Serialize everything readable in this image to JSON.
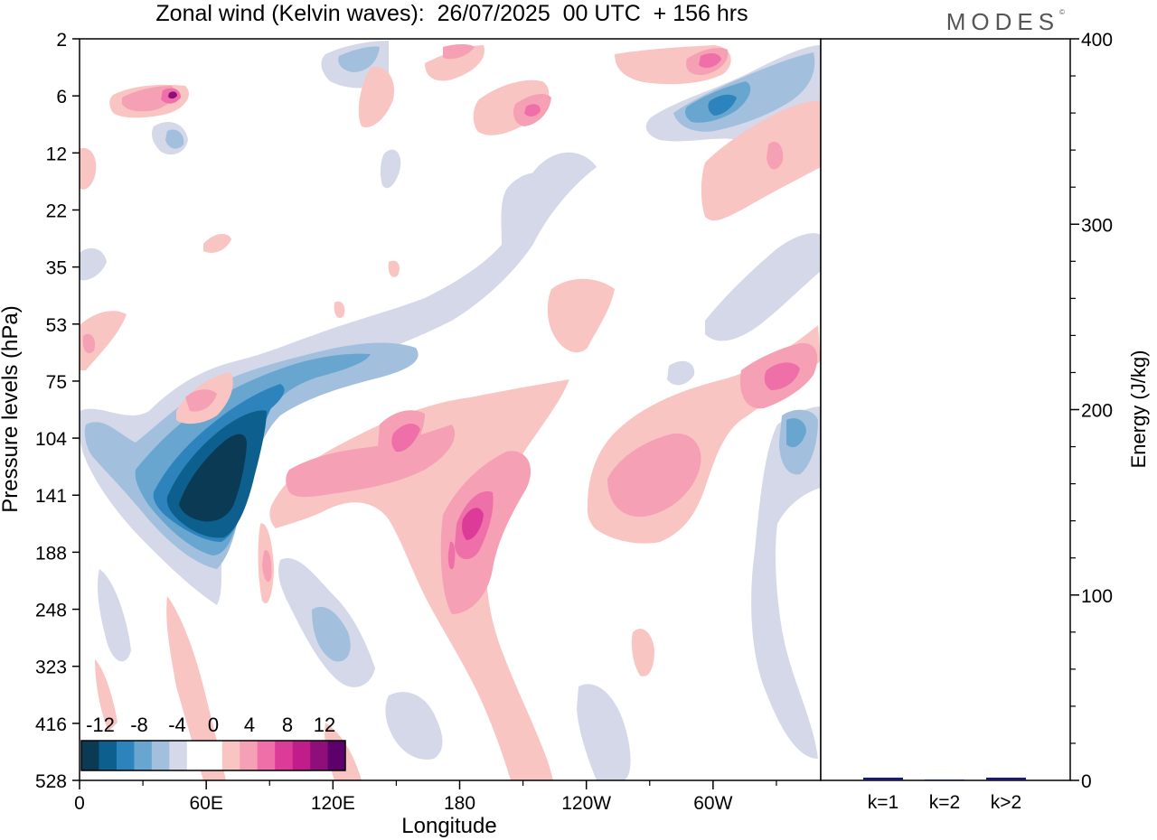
{
  "title": "Zonal wind (Kelvin waves):  26/07/2025  00 UTC  + 156 hrs",
  "logo": "MODES",
  "chart_data": [
    {
      "type": "heatmap",
      "title": "Zonal wind (Kelvin waves):  26/07/2025  00 UTC  + 156 hrs",
      "xlabel": "Longitude",
      "ylabel": "Pressure levels (hPa)",
      "x_ticks": [
        {
          "lon": 0,
          "label": "0"
        },
        {
          "lon": 60,
          "label": "60E"
        },
        {
          "lon": 120,
          "label": "120E"
        },
        {
          "lon": 180,
          "label": "180"
        },
        {
          "lon": 240,
          "label": "120W"
        },
        {
          "lon": 300,
          "label": "60W"
        }
      ],
      "xlim": [
        0,
        360
      ],
      "y_levels": [
        "2",
        "6",
        "12",
        "22",
        "35",
        "53",
        "75",
        "104",
        "141",
        "188",
        "248",
        "323",
        "416",
        "528"
      ],
      "colorbar": {
        "labels": [
          "-12",
          "-8",
          "-4",
          "0",
          "4",
          "8",
          "12"
        ],
        "colors": [
          "#0a3a54",
          "#0d5f8d",
          "#2d84bc",
          "#69a6cf",
          "#a2c0dd",
          "#d4d8e8",
          "#ffffff",
          "#ffffff",
          "#f8c5c3",
          "#f6a0b5",
          "#ef6fa8",
          "#dc3c98",
          "#c01d8a",
          "#8f0f7a",
          "#5d006b"
        ]
      },
      "features": [
        {
          "value": -4,
          "lon": 25,
          "level": 104,
          "note": "negative anomaly"
        },
        {
          "value": -16,
          "lon": 60,
          "level": 130,
          "note": "strongest negative anomaly"
        },
        {
          "value": 8,
          "lon": 175,
          "level": 116,
          "note": "positive anomaly"
        },
        {
          "value": 10,
          "lon": 190,
          "level": 150,
          "note": "positive anomaly"
        },
        {
          "value": 8,
          "lon": 285,
          "level": 130,
          "note": "positive anomaly"
        },
        {
          "value": 10,
          "lon": 345,
          "level": 75,
          "note": "positive anomaly"
        },
        {
          "value": -8,
          "lon": 310,
          "level": 6,
          "note": "negative anomaly"
        },
        {
          "value": 10,
          "lon": 308,
          "level": 4,
          "note": "positive anomaly"
        }
      ]
    },
    {
      "type": "bar",
      "ylabel": "Energy (J/kg)",
      "categories": [
        "k=1",
        "k=2",
        "k>2"
      ],
      "values": [
        1.5,
        0.5,
        1.5
      ],
      "ylim": [
        0,
        400
      ],
      "y_ticks": [
        "0",
        "100",
        "200",
        "300",
        "400"
      ],
      "bar_color": "#1a1a6e"
    }
  ]
}
